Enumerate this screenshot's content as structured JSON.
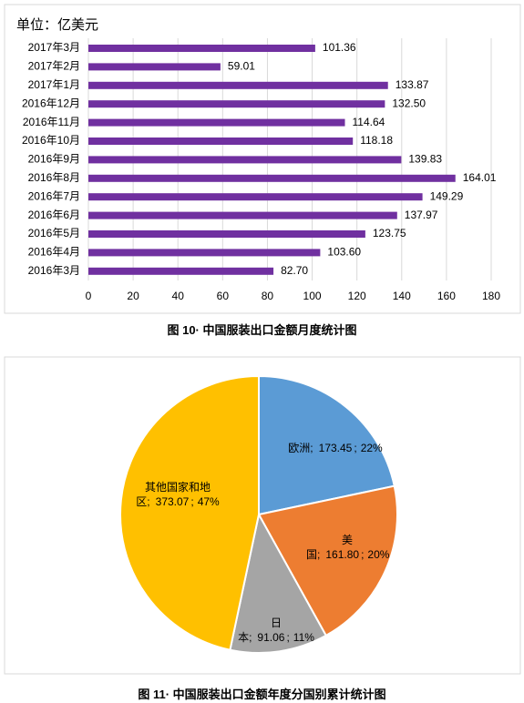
{
  "chart_data": [
    {
      "type": "bar",
      "orientation": "horizontal",
      "title": "单位：亿美元",
      "categories": [
        "2017年3月",
        "2017年2月",
        "2017年1月",
        "2016年12月",
        "2016年11月",
        "2016年10月",
        "2016年9月",
        "2016年8月",
        "2016年7月",
        "2016年6月",
        "2016年5月",
        "2016年4月",
        "2016年3月"
      ],
      "values": [
        101.36,
        59.01,
        133.87,
        132.5,
        114.64,
        118.18,
        139.83,
        164.01,
        149.29,
        137.97,
        123.75,
        103.6,
        82.7
      ],
      "value_labels": [
        "101.36",
        "59.01",
        "133.87",
        "132.50",
        "114.64",
        "118.18",
        "139.83",
        "164.01",
        "149.29",
        "137.97",
        "123.75",
        "103.60",
        "82.70"
      ],
      "color": "#7030a0",
      "xlim": [
        0,
        180
      ],
      "xticks": [
        0,
        20,
        40,
        60,
        80,
        100,
        120,
        140,
        160,
        180
      ],
      "grid": true,
      "caption": "图 10· 中国服装出口金额月度统计图"
    },
    {
      "type": "pie",
      "categories": [
        "欧洲",
        "美国",
        "日本",
        "其他国家和地区"
      ],
      "values": [
        173.45,
        161.8,
        91.06,
        373.07
      ],
      "value_labels": [
        "173.45",
        "161.80",
        "91.06",
        "373.07"
      ],
      "percent_labels": [
        "22%",
        "20%",
        "11%",
        "47%"
      ],
      "separator": ";",
      "colors": [
        "#5b9bd5",
        "#ed7d31",
        "#a5a5a5",
        "#ffc000"
      ],
      "caption": "图 11· 中国服装出口金额年度分国别累计统计图"
    }
  ]
}
